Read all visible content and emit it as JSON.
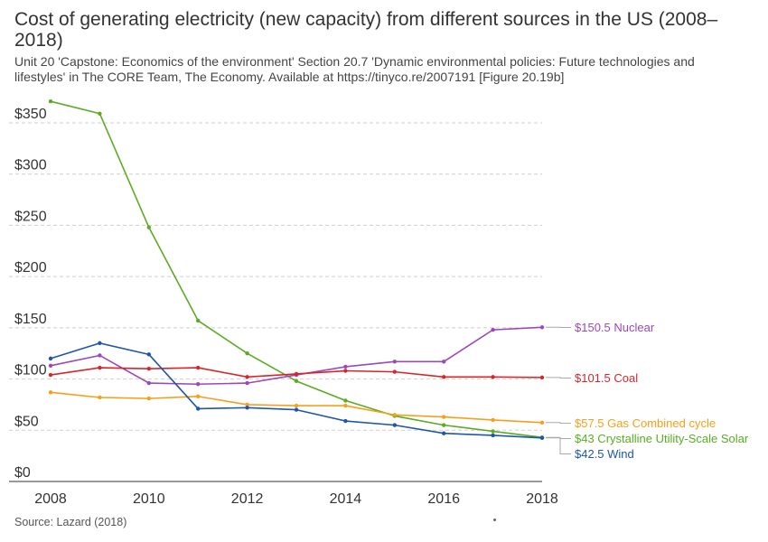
{
  "chart_data": {
    "type": "line",
    "title": "Cost of generating electricity (new capacity) from different sources in the US (2008–2018)",
    "subtitle": "Unit 20 'Capstone: Economics of the environment' Section 20.7 'Dynamic environmental policies: Future technologies and lifestyles' in The CORE Team, The Economy. Available at https://tinyco.re/2007191 [Figure 20.19b]",
    "source": "Source: Lazard (2018)",
    "x": [
      2008,
      2009,
      2010,
      2011,
      2012,
      2013,
      2014,
      2015,
      2016,
      2017,
      2018
    ],
    "xticks": [
      2008,
      2010,
      2012,
      2014,
      2016,
      2018
    ],
    "xtick_labels": [
      "2008",
      "2010",
      "2012",
      "2014",
      "2016",
      "2018"
    ],
    "yticks": [
      0,
      50,
      100,
      150,
      200,
      250,
      300,
      350
    ],
    "ytick_labels": [
      "$0",
      "$50",
      "$100",
      "$150",
      "$200",
      "$250",
      "$300",
      "$350"
    ],
    "xlim": [
      2008,
      2018
    ],
    "ylim": [
      0,
      375
    ],
    "grid": "horizontal dashed",
    "series": [
      {
        "name": "Crystalline Utility-Scale Solar",
        "color": "#5aac23",
        "end_label": "$43 Crystalline Utility-Scale Solar",
        "values": [
          371,
          359,
          248,
          157,
          125,
          98,
          79,
          64,
          55,
          49,
          43
        ]
      },
      {
        "name": "Nuclear",
        "color": "#9b48b8",
        "end_label": "$150.5 Nuclear",
        "values": [
          113,
          123,
          96,
          95,
          96,
          104,
          112,
          117,
          117,
          148,
          150.5
        ]
      },
      {
        "name": "Coal",
        "color": "#d7262b",
        "end_label": "$101.5 Coal",
        "values": [
          104,
          111,
          110,
          111,
          102,
          105,
          108,
          107,
          102,
          102,
          101.5
        ]
      },
      {
        "name": "Gas Combined cycle",
        "color": "#f5a01a",
        "end_label": "$57.5 Gas Combined cycle",
        "values": [
          87,
          82,
          81,
          83,
          75,
          74,
          74,
          65,
          63,
          60,
          57.5
        ]
      },
      {
        "name": "Wind",
        "color": "#1f56a8",
        "end_label": "$42.5 Wind",
        "values": [
          120,
          135,
          124,
          71,
          72,
          70,
          59,
          55,
          47,
          45,
          42.5
        ]
      }
    ]
  }
}
